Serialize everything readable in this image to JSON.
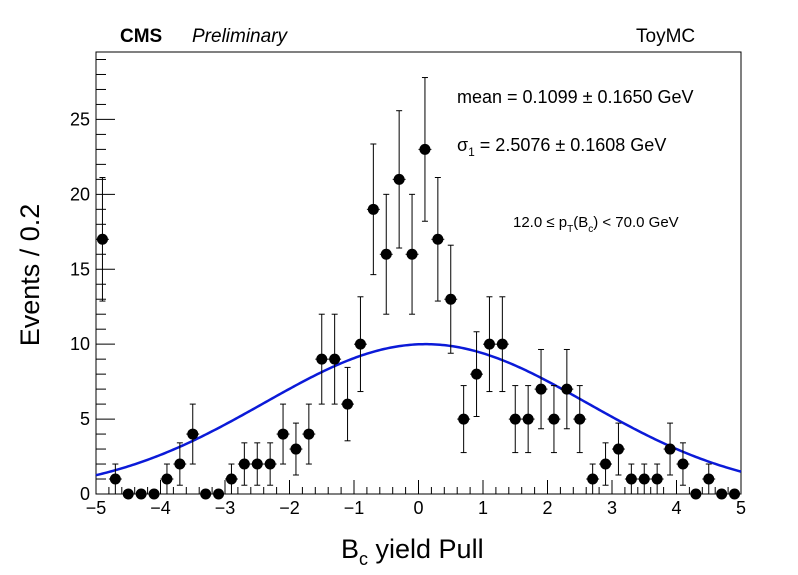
{
  "header": {
    "experiment": "CMS",
    "status": "Preliminary",
    "sample": "ToyMC"
  },
  "annotations": {
    "mean": "mean = 0.1099 ± 0.1650 GeV",
    "sigma_symbol": "σ",
    "sigma_sub": "1",
    "sigma_rest": " = 2.5076 ± 0.1608 GeV",
    "pt_pre": "12.0 ≤ p",
    "pt_sub_T": "T",
    "pt_mid": "(B",
    "pt_sub_c": "c",
    "pt_post": ") < 70.0 GeV"
  },
  "colors": {
    "fit": "#0b1ad8",
    "points": "#000000"
  },
  "chart_data": {
    "type": "scatter",
    "xlabel_main": "B",
    "xlabel_sub": "c",
    "xlabel_rest": " yield Pull",
    "ylabel": "Events / 0.2",
    "xlim": [
      -5,
      5
    ],
    "ylim": [
      0,
      29.5
    ],
    "x_ticks": [
      -5,
      -4,
      -3,
      -2,
      -1,
      0,
      1,
      2,
      3,
      4,
      5
    ],
    "x_tick_labels": [
      "−5",
      "−4",
      "−3",
      "−2",
      "−1",
      "0",
      "1",
      "2",
      "3",
      "4",
      "5"
    ],
    "y_ticks": [
      0,
      5,
      10,
      15,
      20,
      25
    ],
    "y_tick_labels": [
      "0",
      "5",
      "10",
      "15",
      "20",
      "25"
    ],
    "series": [
      {
        "x": [
          -4.9,
          -4.7,
          -4.5,
          -4.3,
          -4.1,
          -3.9,
          -3.7,
          -3.5,
          -3.3,
          -3.1,
          -2.9,
          -2.7,
          -2.5,
          -2.3,
          -2.1,
          -1.9,
          -1.7,
          -1.5,
          -1.3,
          -1.1,
          -0.9,
          -0.7,
          -0.5,
          -0.3,
          -0.1,
          0.1,
          0.3,
          0.5,
          0.7,
          0.9,
          1.1,
          1.3,
          1.5,
          1.7,
          1.9,
          2.1,
          2.3,
          2.5,
          2.7,
          2.9,
          3.1,
          3.3,
          3.5,
          3.7,
          3.9,
          4.1,
          4.3,
          4.5,
          4.7,
          4.9
        ],
        "y": [
          17,
          1,
          0,
          0,
          0,
          1,
          2,
          4,
          0,
          0,
          1,
          2,
          2,
          2,
          4,
          3,
          4,
          9,
          9,
          6,
          10,
          19,
          16,
          21,
          16,
          23,
          17,
          13,
          5,
          8,
          10,
          10,
          5,
          5,
          7,
          5,
          7,
          5,
          1,
          2,
          3,
          1,
          1,
          1,
          3,
          2,
          0,
          1,
          0,
          0
        ]
      }
    ],
    "fit": {
      "type": "gaussian",
      "mean": 0.1099,
      "sigma": 2.5076,
      "amplitude": 10.0
    }
  }
}
